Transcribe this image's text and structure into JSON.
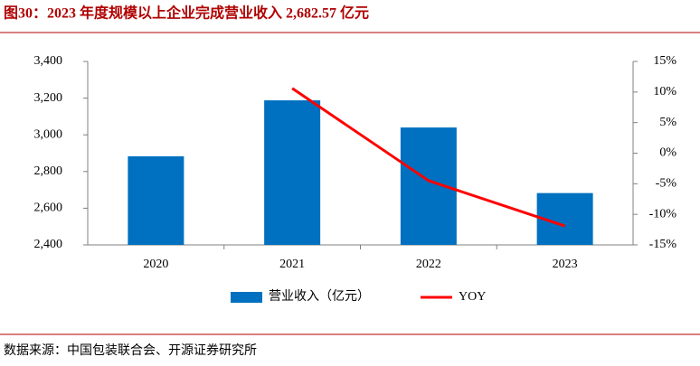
{
  "title": "图30：2023 年度规模以上企业完成营业收入 2,682.57 亿元",
  "source": "数据来源：中国包装联合会、开源证券研究所",
  "chart_data": {
    "type": "bar-line",
    "categories": [
      "2020",
      "2021",
      "2022",
      "2023"
    ],
    "series": [
      {
        "name": "营业收入（亿元）",
        "type": "bar",
        "color": "#0070c0",
        "values": [
          2883,
          3188,
          3040,
          2682.57
        ]
      },
      {
        "name": "YOY",
        "type": "line",
        "color": "#ff0000",
        "axis": "y2",
        "values": [
          null,
          10.6,
          -4.5,
          -11.9
        ]
      }
    ],
    "ylim": [
      2400,
      3400
    ],
    "yticks": [
      {
        "value": 2400,
        "label": "2,400"
      },
      {
        "value": 2600,
        "label": "2,600"
      },
      {
        "value": 2800,
        "label": "2,800"
      },
      {
        "value": 3000,
        "label": "3,000"
      },
      {
        "value": 3200,
        "label": "3,200"
      },
      {
        "value": 3400,
        "label": "3,400"
      }
    ],
    "y2lim": [
      -15,
      15
    ],
    "y2ticks": [
      {
        "value": -15,
        "label": "-15%"
      },
      {
        "value": -10,
        "label": "-10%"
      },
      {
        "value": -5,
        "label": "-5%"
      },
      {
        "value": 0,
        "label": "0%"
      },
      {
        "value": 5,
        "label": "5%"
      },
      {
        "value": 10,
        "label": "10%"
      },
      {
        "value": 15,
        "label": "15%"
      }
    ],
    "legend": "bottom"
  }
}
